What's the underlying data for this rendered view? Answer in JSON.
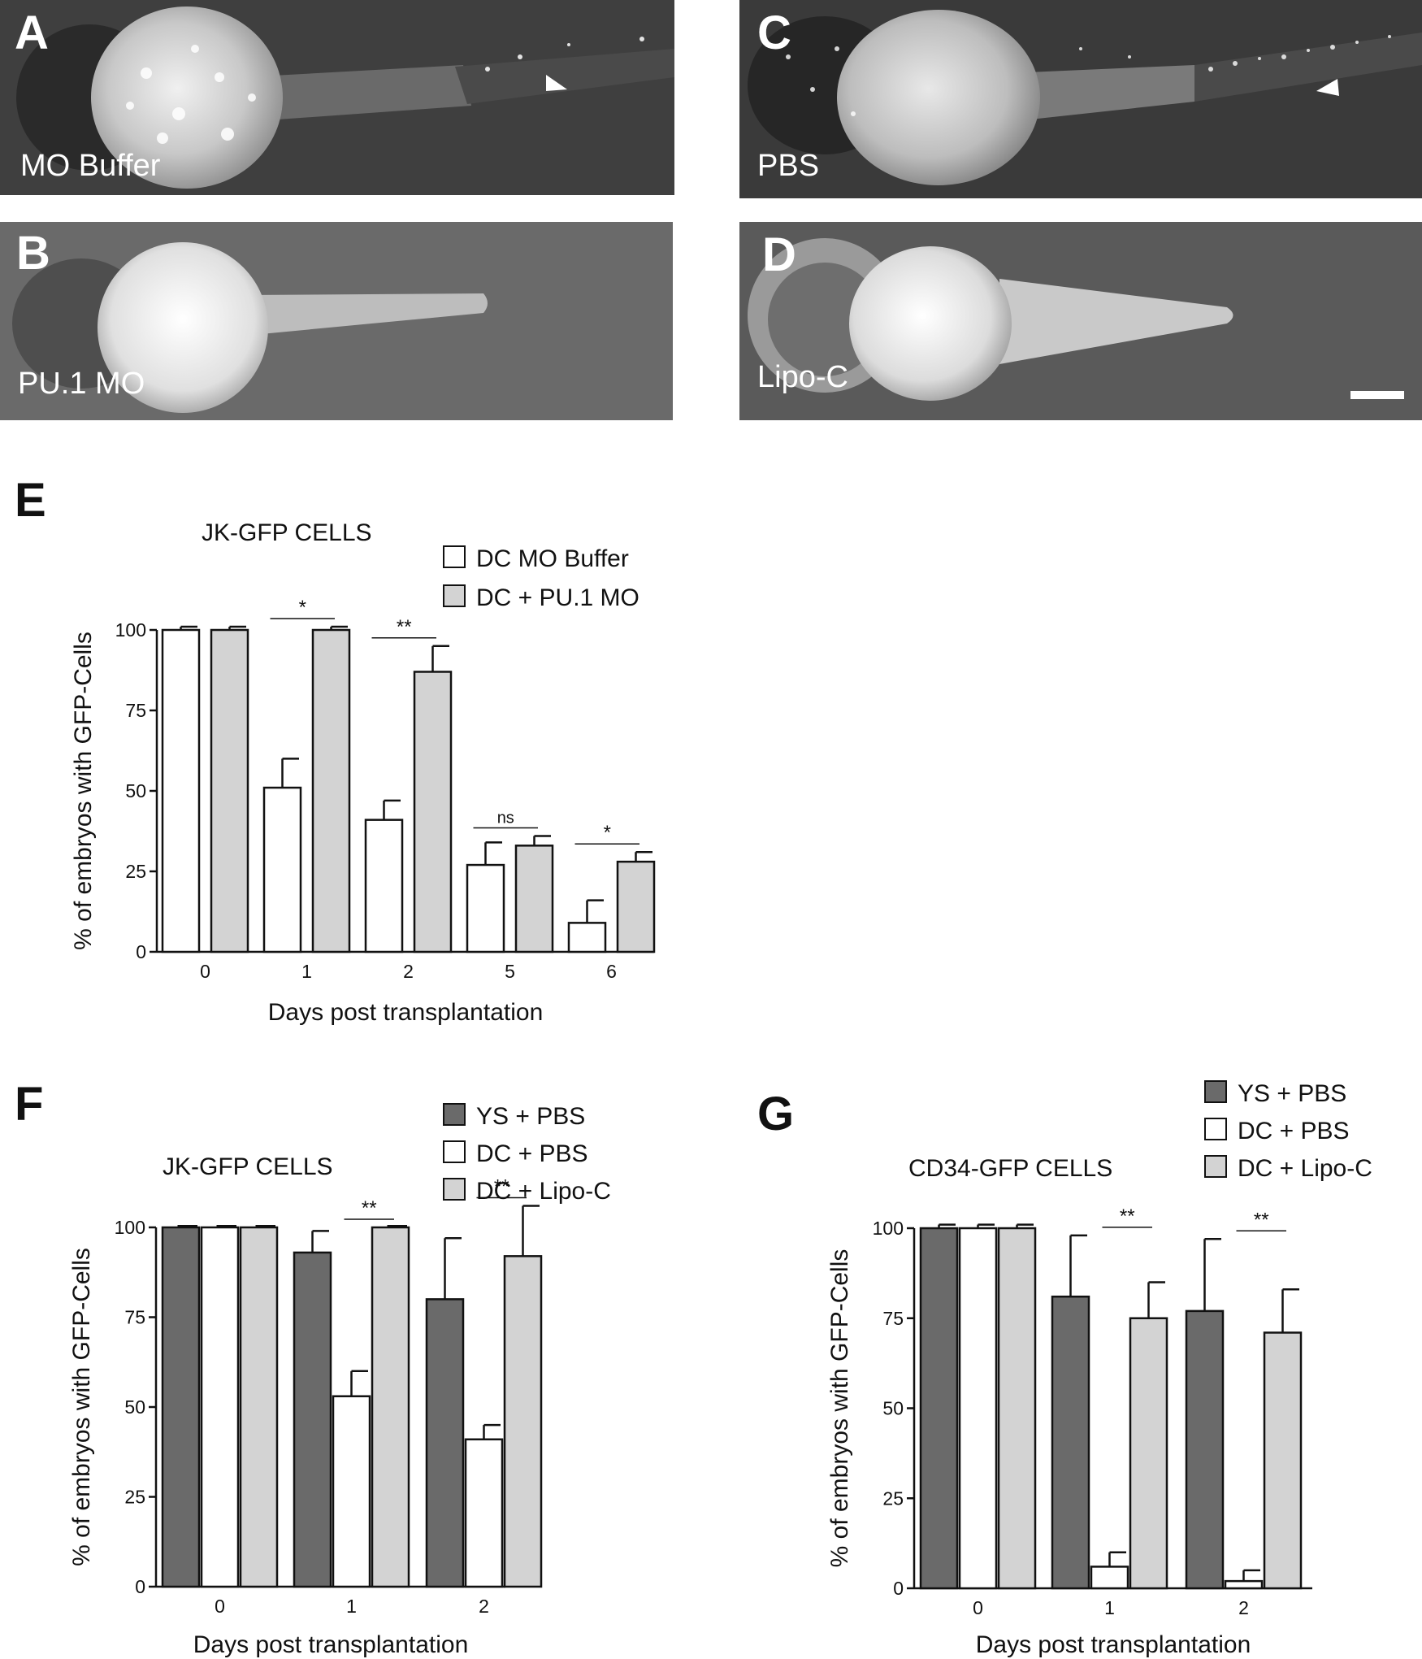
{
  "images": [
    {
      "id": "A",
      "letter": "A",
      "label": "MO Buffer"
    },
    {
      "id": "B",
      "letter": "B",
      "label": "PU.1 MO"
    },
    {
      "id": "C",
      "letter": "C",
      "label": "PBS"
    },
    {
      "id": "D",
      "letter": "D",
      "label": "Lipo-C"
    }
  ],
  "colors": {
    "white": "#ffffff",
    "light_gray": "#d3d3d3",
    "dark_gray": "#6a6a6a"
  },
  "chart_data": [
    {
      "panel": "E",
      "type": "bar",
      "title": "JK-GFP CELLS",
      "xlabel": "Days post transplantation",
      "ylabel": "% of embryos with GFP-Cells",
      "ylim": [
        0,
        100
      ],
      "yticks": [
        "0",
        "25",
        "50",
        "75",
        "100"
      ],
      "categories": [
        "0",
        "1",
        "2",
        "5",
        "6"
      ],
      "series": [
        {
          "name": "DC MO Buffer",
          "color": "#ffffff",
          "values": [
            100,
            51,
            41,
            27,
            9
          ],
          "errors": [
            1,
            9,
            6,
            7,
            7
          ]
        },
        {
          "name": "DC  + PU.1 MO",
          "color": "#d3d3d3",
          "values": [
            100,
            100,
            87,
            33,
            28
          ],
          "errors": [
            1,
            1,
            8,
            3,
            3
          ]
        }
      ],
      "significance": [
        {
          "category_index": 1,
          "label": "*"
        },
        {
          "category_index": 2,
          "label": "**"
        },
        {
          "category_index": 3,
          "label": "ns"
        },
        {
          "category_index": 4,
          "label": "*"
        }
      ],
      "legend_position": "top-right"
    },
    {
      "panel": "F",
      "type": "bar",
      "title": "JK-GFP CELLS",
      "xlabel": "Days post transplantation",
      "ylabel": "% of embryos with GFP-Cells",
      "ylim": [
        0,
        100
      ],
      "yticks": [
        "0",
        "25",
        "50",
        "75",
        "100"
      ],
      "categories": [
        "0",
        "1",
        "2"
      ],
      "series": [
        {
          "name": "YS  + PBS",
          "color": "#6a6a6a",
          "values": [
            100,
            93,
            80
          ],
          "errors": [
            0,
            6,
            17
          ]
        },
        {
          "name": "DC  + PBS",
          "color": "#ffffff",
          "values": [
            100,
            53,
            41
          ],
          "errors": [
            0,
            7,
            4
          ]
        },
        {
          "name": "DC  + Lipo-C",
          "color": "#d3d3d3",
          "values": [
            100,
            100,
            92
          ],
          "errors": [
            0,
            0,
            14
          ]
        }
      ],
      "significance": [
        {
          "category_index": 1,
          "label": "**"
        },
        {
          "category_index": 2,
          "label": "**"
        }
      ],
      "legend_position": "top-right"
    },
    {
      "panel": "G",
      "type": "bar",
      "title": "CD34-GFP CELLS",
      "xlabel": "Days post transplantation",
      "ylabel": "% of embryos with GFP-Cells",
      "ylim": [
        0,
        100
      ],
      "yticks": [
        "0",
        "25",
        "50",
        "75",
        "100"
      ],
      "categories": [
        "0",
        "1",
        "2"
      ],
      "series": [
        {
          "name": "YS  + PBS",
          "color": "#6a6a6a",
          "values": [
            100,
            81,
            77
          ],
          "errors": [
            1,
            17,
            20
          ]
        },
        {
          "name": "DC  + PBS",
          "color": "#ffffff",
          "values": [
            100,
            6,
            2
          ],
          "errors": [
            1,
            4,
            3
          ]
        },
        {
          "name": "DC  + Lipo-C",
          "color": "#d3d3d3",
          "values": [
            100,
            75,
            71
          ],
          "errors": [
            1,
            10,
            12
          ]
        }
      ],
      "significance": [
        {
          "category_index": 1,
          "label": "**"
        },
        {
          "category_index": 2,
          "label": "**"
        }
      ],
      "legend_position": "top-right"
    }
  ]
}
